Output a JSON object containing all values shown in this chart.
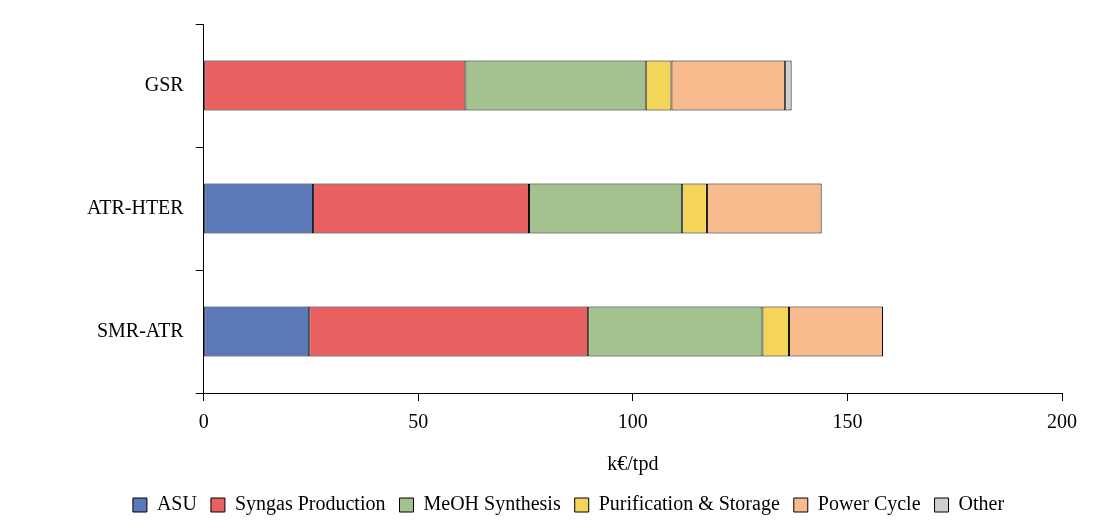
{
  "chart_data": {
    "type": "bar",
    "orientation": "horizontal",
    "stacked": true,
    "xlabel": "k€/tpd",
    "categories": [
      "GSR",
      "ATR-HTER",
      "SMR-ATR"
    ],
    "series": [
      {
        "name": "ASU",
        "color": "#5b78b8",
        "values": [
          0,
          25.5,
          24.6
        ]
      },
      {
        "name": "Syngas Production",
        "color": "#e8605f",
        "values": [
          61,
          50.3,
          65
        ]
      },
      {
        "name": "MeOH Synthesis",
        "color": "#a3c28e",
        "values": [
          42,
          35.7,
          40.6
        ]
      },
      {
        "name": "Purification & Storage",
        "color": "#f5d45a",
        "values": [
          6,
          5.8,
          6.2
        ]
      },
      {
        "name": "Power Cycle",
        "color": "#f7bb8e",
        "values": [
          26.5,
          26.7,
          21.9
        ]
      },
      {
        "name": "Other",
        "color": "#cfcfcf",
        "values": [
          1.5,
          0,
          0
        ]
      }
    ],
    "xlim": [
      0,
      200
    ],
    "xticks": [
      0,
      50,
      100,
      150,
      200
    ],
    "grid": false,
    "legend": "bottom"
  }
}
